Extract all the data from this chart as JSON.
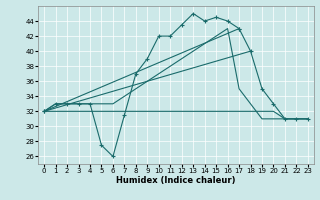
{
  "xlabel": "Humidex (Indice chaleur)",
  "background_color": "#cce8e8",
  "line_color": "#1a6b6b",
  "xlim": [
    -0.5,
    23.5
  ],
  "ylim": [
    25,
    46
  ],
  "yticks": [
    26,
    28,
    30,
    32,
    34,
    36,
    38,
    40,
    42,
    44
  ],
  "xticks": [
    0,
    1,
    2,
    3,
    4,
    5,
    6,
    7,
    8,
    9,
    10,
    11,
    12,
    13,
    14,
    15,
    16,
    17,
    18,
    19,
    20,
    21,
    22,
    23
  ],
  "series": [
    {
      "x": [
        0,
        1,
        2,
        3,
        4,
        5,
        6,
        7,
        8,
        9,
        10,
        11,
        12,
        13,
        14,
        15,
        16,
        17
      ],
      "y": [
        32,
        33,
        33,
        33,
        33,
        27.5,
        26,
        31.5,
        37,
        39,
        42,
        42,
        43.5,
        45,
        44,
        44.5,
        44,
        43
      ],
      "marker": true
    },
    {
      "x": [
        0,
        1,
        2,
        3,
        4,
        5,
        6,
        7,
        8,
        9,
        10,
        11,
        12,
        13,
        14,
        15,
        16,
        17,
        18,
        19,
        20,
        21,
        22,
        23
      ],
      "y": [
        32,
        32,
        32,
        32,
        32,
        32,
        32,
        32,
        32,
        32,
        32,
        32,
        32,
        32,
        32,
        32,
        32,
        32,
        32,
        32,
        32,
        31,
        31,
        31
      ],
      "marker": false
    },
    {
      "x": [
        0,
        1,
        2,
        3,
        4,
        5,
        6,
        7,
        8,
        9,
        10,
        11,
        12,
        13,
        14,
        15,
        16,
        17,
        18,
        19,
        20,
        21,
        22,
        23
      ],
      "y": [
        32,
        33,
        33,
        33,
        33,
        33,
        33,
        34,
        35,
        36,
        37,
        38,
        39,
        40,
        41,
        42,
        43,
        35,
        33,
        31,
        31,
        31,
        31,
        31
      ],
      "marker": false
    },
    {
      "x": [
        0,
        17,
        18,
        19,
        20,
        21,
        22,
        23
      ],
      "y": [
        32,
        43,
        40,
        35,
        33,
        31,
        31,
        31
      ],
      "marker": true
    },
    {
      "x": [
        0,
        18
      ],
      "y": [
        32,
        40
      ],
      "marker": false
    }
  ]
}
